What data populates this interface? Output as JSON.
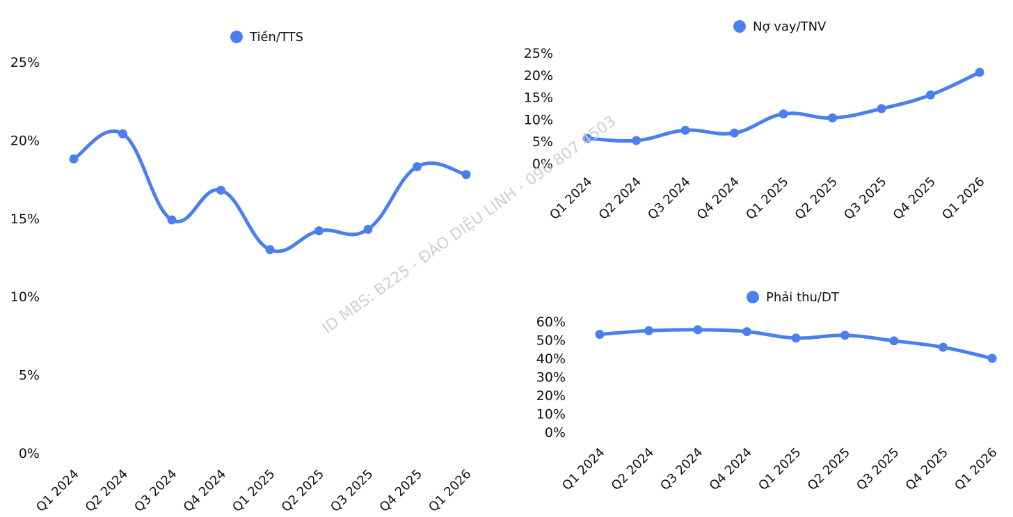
{
  "watermark": "ID MBS: B225 - ĐÀO DIỆU LINH - 096 807 4503",
  "colors": {
    "series": "#4a7fee",
    "text": "#111111",
    "watermark": "#cfcfcf"
  },
  "chart_data": [
    {
      "id": "cash",
      "type": "line",
      "title": "",
      "categories": [
        "Q1 2024",
        "Q2 2024",
        "Q3 2024",
        "Q4 2024",
        "Q1 2025",
        "Q2 2025",
        "Q3 2025",
        "Q4 2025",
        "Q1 2026"
      ],
      "series": [
        {
          "name": "Tiền/TTS",
          "values": [
            18.8,
            20.4,
            14.9,
            16.8,
            13.0,
            14.2,
            14.3,
            18.3,
            17.8
          ]
        }
      ],
      "yticks": [
        "0%",
        "5%",
        "10%",
        "15%",
        "20%",
        "25%"
      ],
      "ylim": [
        0,
        25
      ],
      "legend_position": "top-center",
      "grid": false,
      "smooth": true
    },
    {
      "id": "debt",
      "type": "line",
      "title": "",
      "categories": [
        "Q1 2024",
        "Q2 2024",
        "Q3 2024",
        "Q4 2024",
        "Q1 2025",
        "Q2 2025",
        "Q3 2025",
        "Q4 2025",
        "Q1 2026"
      ],
      "series": [
        {
          "name": "Nợ vay/TNV",
          "values": [
            5.7,
            5.2,
            7.5,
            6.9,
            11.2,
            10.3,
            12.4,
            15.5,
            20.6
          ]
        }
      ],
      "yticks": [
        "0%",
        "5%",
        "10%",
        "15%",
        "20%",
        "25%"
      ],
      "ylim": [
        0,
        25
      ],
      "legend_position": "top-center",
      "grid": false,
      "smooth": true
    },
    {
      "id": "recv",
      "type": "line",
      "title": "",
      "categories": [
        "Q1 2024",
        "Q2 2024",
        "Q3 2024",
        "Q4 2024",
        "Q1 2025",
        "Q2 2025",
        "Q3 2025",
        "Q4 2025",
        "Q1 2026"
      ],
      "series": [
        {
          "name": "Phải thu/DT",
          "values": [
            53,
            55,
            55.5,
            54.5,
            51,
            52.5,
            49.5,
            46,
            40
          ]
        }
      ],
      "yticks": [
        "0%",
        "10%",
        "20%",
        "30%",
        "40%",
        "50%",
        "60%"
      ],
      "ylim": [
        0,
        60
      ],
      "legend_position": "top-center",
      "grid": false,
      "smooth": true
    }
  ]
}
